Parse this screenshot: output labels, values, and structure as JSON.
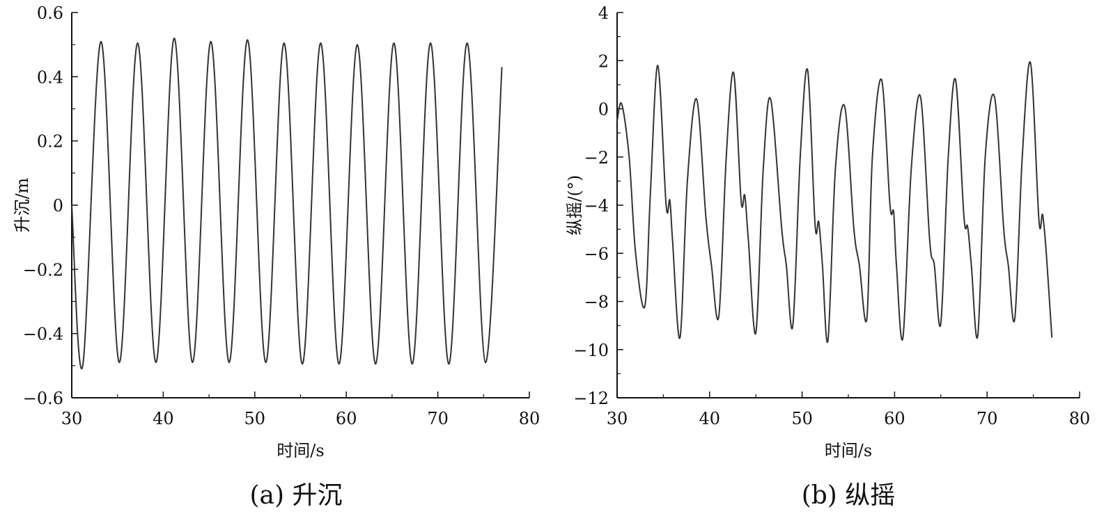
{
  "chart_data": [
    {
      "type": "line",
      "caption": "(a) 升沉",
      "xlabel": "时间/s",
      "ylabel": "升沉/m",
      "xlim": [
        30,
        80
      ],
      "ylim": [
        -0.6,
        0.6
      ],
      "xticks": [
        30,
        40,
        50,
        60,
        70,
        80
      ],
      "xtick_labels": [
        "30",
        "40",
        "50",
        "60",
        "70",
        "80"
      ],
      "yticks": [
        -0.6,
        -0.4,
        -0.2,
        0,
        0.2,
        0.4,
        0.6
      ],
      "ytick_labels": [
        "−0.6",
        "−0.4",
        "−0.2",
        "0",
        "0.2",
        "0.4",
        "0.6"
      ],
      "grid": false,
      "line_color": "#333333",
      "series": [
        {
          "x": [
            30.0,
            31.2,
            33.2,
            35.2,
            37.2,
            39.2,
            41.2,
            43.2,
            45.2,
            47.2,
            49.2,
            51.2,
            53.2,
            55.2,
            57.2,
            59.2,
            61.2,
            63.2,
            65.2,
            67.2,
            69.2,
            71.2,
            73.2,
            75.2,
            77.0
          ],
          "y": [
            0.0,
            -0.5,
            0.51,
            -0.49,
            0.505,
            -0.49,
            0.52,
            -0.49,
            0.51,
            -0.49,
            0.515,
            -0.49,
            0.505,
            -0.495,
            0.505,
            -0.495,
            0.5,
            -0.495,
            0.505,
            -0.495,
            0.505,
            -0.495,
            0.505,
            -0.49,
            0.43
          ]
        }
      ]
    },
    {
      "type": "line",
      "caption": "(b) 纵摇",
      "xlabel": "时间/s",
      "ylabel": "纵摇/(°)",
      "xlim": [
        30,
        80
      ],
      "ylim": [
        -12,
        4
      ],
      "xticks": [
        30,
        40,
        50,
        60,
        70,
        80
      ],
      "xtick_labels": [
        "30",
        "40",
        "50",
        "60",
        "70",
        "80"
      ],
      "yticks": [
        -12,
        -10,
        -8,
        -6,
        -4,
        -2,
        0,
        2,
        4
      ],
      "ytick_labels": [
        "−12",
        "−10",
        "−8",
        "−6",
        "−4",
        "−2",
        "0",
        "2",
        "4"
      ],
      "grid": false,
      "line_color": "#333333",
      "series": [
        {
          "x": [
            30.0,
            30.5,
            31.3,
            32.0,
            33.0,
            33.6,
            34.4,
            35.3,
            35.7,
            36.0,
            36.8,
            37.6,
            38.6,
            39.6,
            40.2,
            41.0,
            41.8,
            42.6,
            43.4,
            43.8,
            44.2,
            45.0,
            45.8,
            46.6,
            47.8,
            48.3,
            49.0,
            49.8,
            50.6,
            51.4,
            51.8,
            52.2,
            52.8,
            53.6,
            54.6,
            55.6,
            56.2,
            57.0,
            57.6,
            58.6,
            59.5,
            59.9,
            60.2,
            60.9,
            61.8,
            62.8,
            63.8,
            64.3,
            65.0,
            65.8,
            66.6,
            67.5,
            67.9,
            68.3,
            69.0,
            69.8,
            70.8,
            71.8,
            72.3,
            73.0,
            73.8,
            74.7,
            75.6,
            76.0,
            76.4,
            77.0
          ],
          "y": [
            -0.5,
            0.2,
            -2.0,
            -6.0,
            -8.2,
            -3.5,
            1.8,
            -4.0,
            -3.8,
            -5.5,
            -9.5,
            -3.0,
            0.4,
            -4.5,
            -6.5,
            -8.6,
            -2.0,
            1.5,
            -3.8,
            -3.6,
            -5.5,
            -9.3,
            -2.5,
            0.4,
            -5.0,
            -6.5,
            -9.0,
            -2.0,
            1.6,
            -4.8,
            -4.7,
            -6.5,
            -9.6,
            -2.5,
            0.1,
            -5.0,
            -6.5,
            -8.7,
            -2.0,
            1.2,
            -4.0,
            -4.3,
            -6.5,
            -9.5,
            -2.5,
            0.5,
            -5.5,
            -6.5,
            -8.9,
            -2.0,
            1.2,
            -4.5,
            -4.9,
            -6.5,
            -9.4,
            -2.0,
            0.5,
            -5.0,
            -6.5,
            -8.7,
            -2.0,
            1.9,
            -4.6,
            -4.4,
            -6.0,
            -9.5
          ]
        }
      ]
    }
  ]
}
